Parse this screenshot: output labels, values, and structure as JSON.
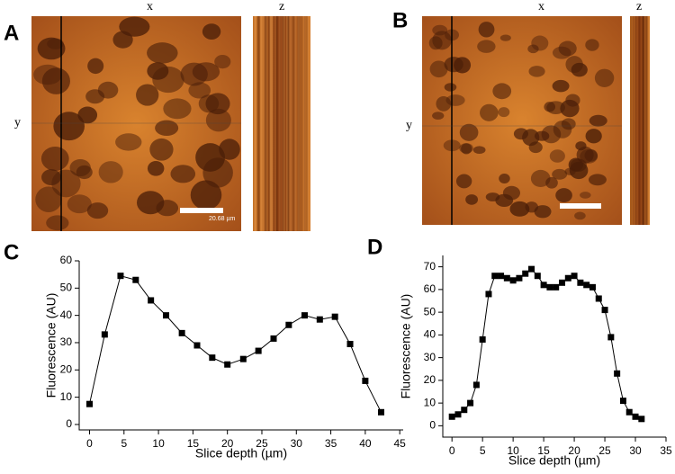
{
  "panels": [
    {
      "label": "A",
      "x_label": "x",
      "y_label": "y",
      "z_label": "z",
      "scale_bar": "20.68 µm"
    },
    {
      "label": "B",
      "x_label": "x",
      "y_label": "y",
      "z_label": "z"
    }
  ],
  "chart_data": [
    {
      "type": "line",
      "panel": "C",
      "x_label": "Slice depth (µm)",
      "y_label": "Fluorescence (AU)",
      "x": [
        0,
        2.2,
        4.5,
        6.7,
        8.9,
        11.1,
        13.4,
        15.6,
        17.8,
        20,
        22.3,
        24.5,
        26.7,
        28.9,
        31.2,
        33.4,
        35.6,
        37.8,
        40,
        42.3
      ],
      "series": [
        {
          "color": "#000000",
          "values": [
            7.5,
            33,
            54.5,
            53,
            45.5,
            40,
            33.5,
            29,
            24.5,
            22,
            24,
            27,
            31.5,
            36.5,
            40,
            38.5,
            39.5,
            29.5,
            16,
            4.5
          ]
        }
      ],
      "xlim": [
        -1.5,
        45.5
      ],
      "ylim": [
        -2,
        60
      ],
      "xticks": [
        0,
        5,
        10,
        15,
        20,
        25,
        30,
        35,
        40,
        45
      ],
      "yticks": [
        0,
        10,
        20,
        30,
        40,
        50,
        60
      ]
    },
    {
      "type": "line",
      "panel": "D",
      "x_label": "Slice depth (µm)",
      "y_label": "Fluorescence (AU)",
      "x": [
        0,
        1,
        2,
        3,
        4,
        5,
        6,
        7,
        8,
        9,
        10,
        11,
        12,
        13,
        14,
        15,
        16,
        17,
        18,
        19,
        20,
        21,
        22,
        23,
        24,
        25,
        26,
        27,
        28,
        29,
        30,
        31
      ],
      "series": [
        {
          "color": "#000000",
          "values": [
            4,
            5,
            7,
            10,
            18,
            38,
            58,
            66,
            66,
            65,
            64,
            65,
            67,
            69,
            66,
            62,
            61,
            61,
            63,
            65,
            66,
            63,
            62,
            61,
            56,
            51,
            39,
            23,
            11,
            6,
            4,
            3
          ]
        }
      ],
      "xlim": [
        -1.5,
        35
      ],
      "ylim": [
        -5,
        75
      ],
      "xticks": [
        0,
        5,
        10,
        15,
        20,
        25,
        30,
        35
      ],
      "yticks": [
        0,
        10,
        20,
        30,
        40,
        50,
        60,
        70
      ]
    }
  ]
}
